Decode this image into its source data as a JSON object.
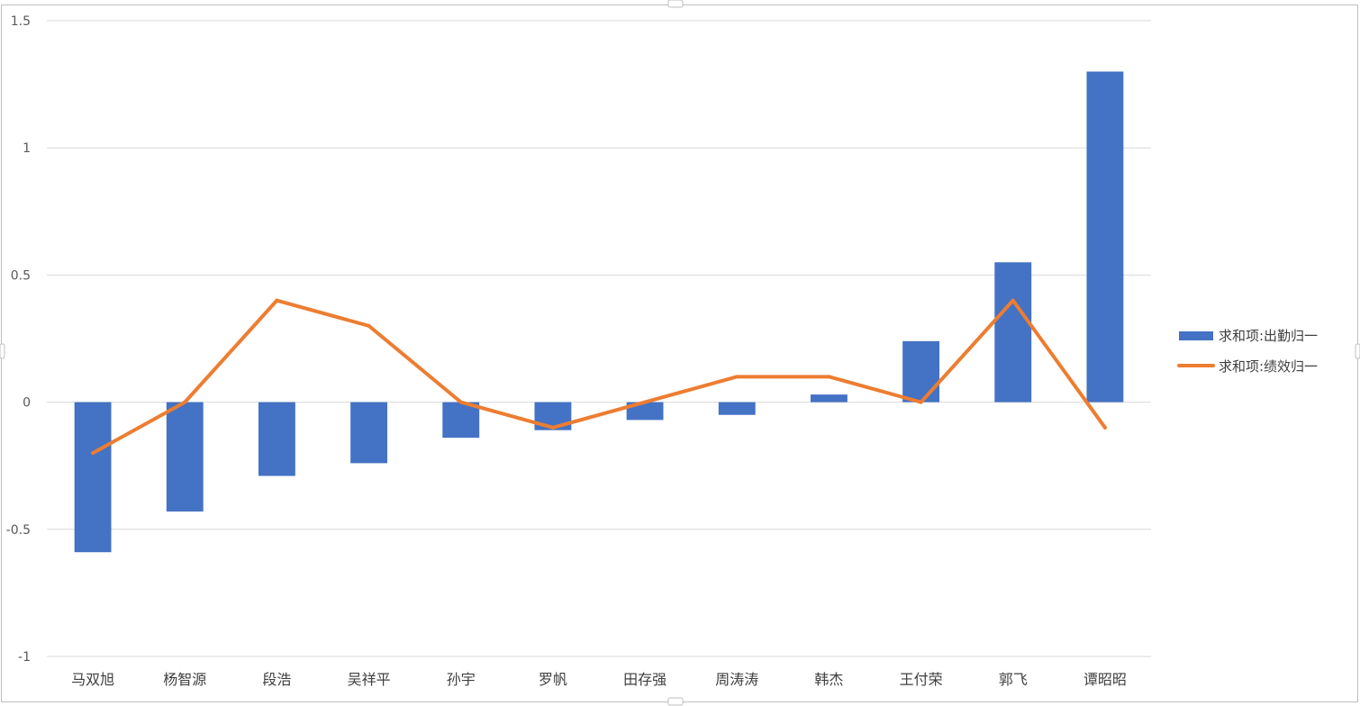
{
  "chart_data": {
    "type": "bar",
    "categories": [
      "马双旭",
      "杨智源",
      "段浩",
      "吴祥平",
      "孙宇",
      "罗帆",
      "田存强",
      "周涛涛",
      "韩杰",
      "王付荣",
      "郭飞",
      "谭昭昭"
    ],
    "series": [
      {
        "name": "求和项:出勤归一",
        "type": "bar",
        "color": "#4472C4",
        "values": [
          -0.59,
          -0.43,
          -0.29,
          -0.24,
          -0.14,
          -0.11,
          -0.07,
          -0.05,
          0.03,
          0.24,
          0.55,
          1.3
        ]
      },
      {
        "name": "求和项:绩效归一",
        "type": "line",
        "color": "#ED7D31",
        "values": [
          -0.2,
          0.0,
          0.4,
          0.3,
          0.0,
          -0.1,
          0.0,
          0.1,
          0.1,
          0.0,
          0.4,
          -0.1
        ]
      }
    ],
    "ylim": [
      -1,
      1.5
    ],
    "yticks": [
      1.5,
      1,
      0.5,
      0,
      -0.5,
      -1
    ],
    "ytick_labels": [
      "1.5",
      "1",
      "0.5",
      "0",
      "-0.5",
      "-1"
    ],
    "grid": true,
    "legend_position": "right",
    "title": "",
    "xlabel": "",
    "ylabel": ""
  }
}
